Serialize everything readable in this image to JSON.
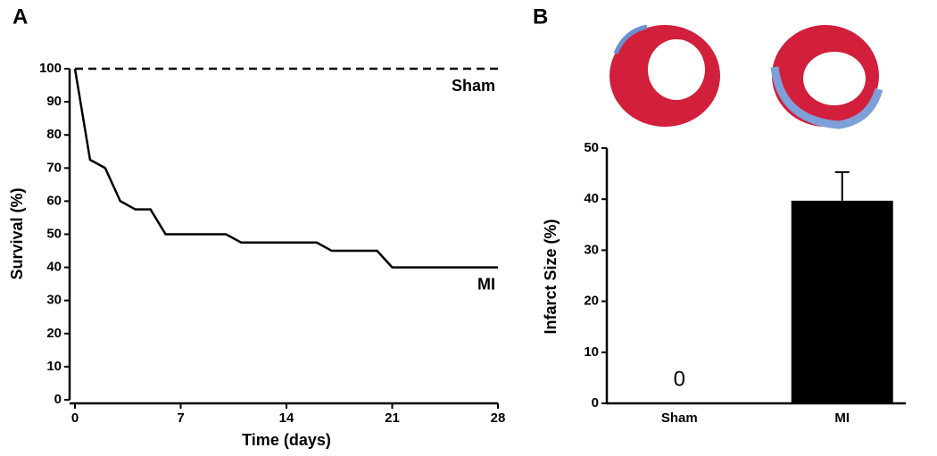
{
  "chart_data": [
    {
      "type": "line",
      "panel_label": "A",
      "x_label": "Time (days)",
      "y_label": "Survival (%)",
      "x": [
        0,
        1,
        2,
        3,
        4,
        5,
        6,
        10,
        11,
        16,
        17,
        20,
        21,
        28
      ],
      "series": [
        {
          "name": "Sham",
          "color": "#000000",
          "linestyle": "dashed",
          "values": [
            100,
            100,
            100,
            100,
            100,
            100,
            100,
            100,
            100,
            100,
            100,
            100,
            100,
            100
          ]
        },
        {
          "name": "MI",
          "color": "#000000",
          "linestyle": "solid",
          "values": [
            100,
            72.5,
            70,
            60,
            57.5,
            57.5,
            50,
            50,
            47.5,
            47.5,
            45,
            45,
            40,
            40
          ]
        }
      ],
      "xlim": [
        0,
        28
      ],
      "xticks": [
        0,
        7,
        14,
        21,
        28
      ],
      "ylim": [
        0,
        100
      ],
      "yticks": [
        0,
        10,
        20,
        30,
        40,
        50,
        60,
        70,
        80,
        90,
        100
      ]
    },
    {
      "type": "bar",
      "panel_label": "B",
      "y_label": "Infarct Size (%)",
      "categories": [
        "Sham",
        "MI"
      ],
      "values": [
        0,
        39.7
      ],
      "errors": [
        0,
        5.6
      ],
      "value_labels": [
        "0",
        null
      ],
      "color": "#000000",
      "ylim": [
        0,
        50
      ],
      "yticks": [
        0,
        10,
        20,
        30,
        40,
        50
      ]
    }
  ]
}
